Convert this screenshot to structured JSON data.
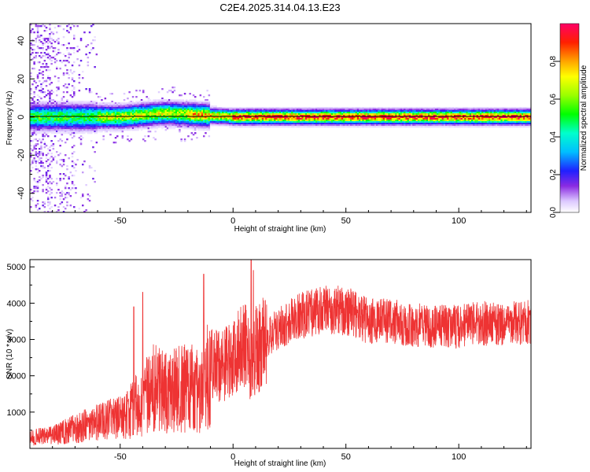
{
  "title": "C2E4.2025.314.04.13.E23",
  "colors": {
    "snr_line": "#ee3333",
    "axis": "#000000",
    "background": "#ffffff"
  },
  "chart_data": [
    {
      "type": "heatmap",
      "title": "C2E4.2025.314.04.13.E23",
      "xlabel": "Height of straight line (km)",
      "ylabel": "Frequency (Hz)",
      "xlim": [
        -90,
        132
      ],
      "ylim": [
        -50,
        49
      ],
      "x_ticks": [
        -50,
        0,
        50,
        100
      ],
      "y_ticks": [
        -40,
        -20,
        0,
        20,
        40
      ],
      "colorbar": {
        "label": "Normalized spectral amplitude",
        "range": [
          0.0,
          1.0
        ],
        "ticks": [
          0.0,
          0.2,
          0.4,
          0.6,
          0.8
        ]
      },
      "description_points": {
        "ridge_center_hz": [
          {
            "x": -90,
            "f": 0
          },
          {
            "x": -50,
            "f": 0
          },
          {
            "x": -30,
            "f": 2
          },
          {
            "x": -15,
            "f": 1
          },
          {
            "x": 0,
            "f": 0
          },
          {
            "x": 132,
            "f": 0
          }
        ]
      }
    },
    {
      "type": "line",
      "xlabel": "Height of straight line (km)",
      "ylabel": "SNR (10 * v/v)",
      "xlim": [
        -90,
        132
      ],
      "ylim": [
        0,
        5200
      ],
      "x_ticks": [
        -50,
        0,
        50,
        100
      ],
      "y_ticks": [
        1000,
        2000,
        3000,
        4000,
        5000
      ],
      "series": [
        {
          "name": "SNR",
          "x": [
            -90,
            -80,
            -70,
            -60,
            -50,
            -40,
            -35,
            -30,
            -20,
            -13,
            -10,
            0,
            5,
            8,
            10,
            15,
            20,
            30,
            40,
            50,
            60,
            70,
            80,
            90,
            100,
            110,
            120,
            132
          ],
          "y": [
            300,
            350,
            550,
            700,
            850,
            1300,
            1700,
            1500,
            1700,
            1600,
            2300,
            2400,
            2900,
            2200,
            2700,
            3000,
            3300,
            3650,
            3800,
            3800,
            3500,
            3500,
            3400,
            3350,
            3350,
            3450,
            3400,
            3500
          ]
        }
      ],
      "spikes": [
        {
          "x": -44,
          "y": 3900
        },
        {
          "x": -40,
          "y": 4300
        },
        {
          "x": -13,
          "y": 4800
        },
        {
          "x": 8,
          "y": 5200
        },
        {
          "x": 9,
          "y": 4900
        }
      ]
    }
  ]
}
